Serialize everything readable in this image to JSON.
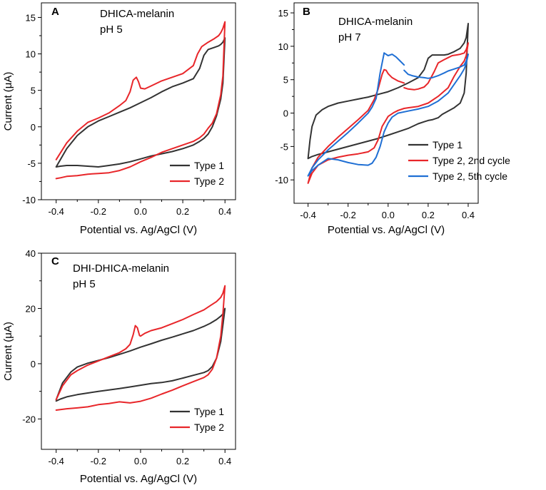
{
  "chart_data": [
    {
      "id": "A",
      "type": "line",
      "panel_label": "A",
      "annotation": [
        "DHICA-melanin",
        "pH 5"
      ],
      "xlabel": "Potential vs. Ag/AgCl (V)",
      "ylabel": "Current (μA)",
      "xlim": [
        -0.47,
        0.45
      ],
      "ylim": [
        -10,
        17
      ],
      "xticks": [
        -0.4,
        -0.2,
        0.0,
        0.2,
        0.4
      ],
      "xtick_labels": [
        "-0.4",
        "-0.2",
        "0.0",
        "0.2",
        "0.4"
      ],
      "yticks": [
        -10,
        -5,
        0,
        5,
        10,
        15
      ],
      "ytick_labels": [
        "-10",
        "-5",
        "0",
        "5",
        "10",
        "15"
      ],
      "legend_position": "bottom-right",
      "series": [
        {
          "name": "Type 1",
          "color": "#333333",
          "segments": [
            {
              "x": [
                -0.4,
                -0.35,
                -0.3,
                -0.25,
                -0.2,
                -0.15,
                -0.1,
                -0.05,
                0.0,
                0.05,
                0.1,
                0.15,
                0.2,
                0.25,
                0.28,
                0.3,
                0.32,
                0.35,
                0.37,
                0.38,
                0.39,
                0.4,
                0.4,
                0.39,
                0.38,
                0.36,
                0.34,
                0.32,
                0.3,
                0.28,
                0.25,
                0.2,
                0.15,
                0.1,
                0.05,
                0.0,
                -0.05,
                -0.1,
                -0.15,
                -0.2,
                -0.25,
                -0.3,
                -0.35,
                -0.38,
                -0.4
              ],
              "y": [
                -5.5,
                -3.0,
                -1.2,
                0.0,
                0.8,
                1.4,
                2.0,
                2.6,
                3.3,
                4.0,
                4.8,
                5.5,
                6.0,
                6.6,
                8.0,
                9.8,
                10.6,
                10.9,
                11.1,
                11.3,
                11.6,
                12.2,
                12.2,
                6.0,
                3.8,
                1.5,
                0.0,
                -1.0,
                -1.6,
                -2.0,
                -2.5,
                -3.0,
                -3.4,
                -3.7,
                -4.0,
                -4.4,
                -4.8,
                -5.1,
                -5.3,
                -5.5,
                -5.4,
                -5.3,
                -5.3,
                -5.4,
                -5.5
              ]
            }
          ]
        },
        {
          "name": "Type 2",
          "color": "#e8262a",
          "segments": [
            {
              "x": [
                -0.4,
                -0.35,
                -0.3,
                -0.25,
                -0.2,
                -0.15,
                -0.1,
                -0.07,
                -0.05,
                -0.035,
                -0.02,
                -0.01,
                0.0,
                0.02,
                0.05,
                0.1,
                0.15,
                0.2,
                0.25,
                0.27,
                0.29,
                0.32,
                0.35,
                0.37,
                0.38,
                0.39,
                0.4,
                0.4,
                0.39,
                0.38,
                0.36,
                0.34,
                0.32,
                0.3,
                0.28,
                0.25,
                0.2,
                0.15,
                0.1,
                0.05,
                0.0,
                -0.05,
                -0.1,
                -0.15,
                -0.2,
                -0.25,
                -0.3,
                -0.35,
                -0.38,
                -0.4
              ],
              "y": [
                -4.5,
                -2.2,
                -0.6,
                0.6,
                1.2,
                1.9,
                2.9,
                3.6,
                4.8,
                6.4,
                6.8,
                6.2,
                5.3,
                5.2,
                5.6,
                6.3,
                6.8,
                7.3,
                8.4,
                10.0,
                11.0,
                11.6,
                12.1,
                12.5,
                12.9,
                13.5,
                14.4,
                14.4,
                7.0,
                4.4,
                1.8,
                0.5,
                -0.2,
                -1.0,
                -1.5,
                -2.0,
                -2.5,
                -3.0,
                -3.5,
                -4.2,
                -4.8,
                -5.5,
                -6.0,
                -6.3,
                -6.4,
                -6.5,
                -6.7,
                -6.8,
                -7.0,
                -7.1
              ]
            }
          ]
        }
      ]
    },
    {
      "id": "B",
      "type": "line",
      "panel_label": "B",
      "annotation": [
        "DHICA-melanin",
        "pH 7"
      ],
      "xlabel": "Potential vs. Ag/AgCl (V)",
      "ylabel": "",
      "xlim": [
        -0.47,
        0.45
      ],
      "ylim": [
        -13.5,
        16.5
      ],
      "xticks": [
        -0.4,
        -0.2,
        0.0,
        0.2,
        0.4
      ],
      "xtick_labels": [
        "-0.4",
        "-0.2",
        "0.0",
        "0.2",
        "0.4"
      ],
      "yticks": [
        -10,
        -5,
        0,
        5,
        10,
        15
      ],
      "ytick_labels": [
        "-10",
        "-5",
        "0",
        "5",
        "10",
        "15"
      ],
      "legend_position": "bottom-right",
      "series": [
        {
          "name": "Type 1",
          "color": "#333333",
          "segments": [
            {
              "x": [
                -0.4,
                -0.39,
                -0.38,
                -0.36,
                -0.33,
                -0.3,
                -0.25,
                -0.2,
                -0.15,
                -0.1,
                -0.05,
                0.0,
                0.05,
                0.1,
                0.15,
                0.18,
                0.2,
                0.22,
                0.25,
                0.28,
                0.3,
                0.33,
                0.36,
                0.38,
                0.39,
                0.4,
                0.4,
                0.39,
                0.38,
                0.36,
                0.33,
                0.3,
                0.27,
                0.25,
                0.22,
                0.2,
                0.18,
                0.15,
                0.1,
                0.05,
                0.0,
                -0.05,
                -0.1,
                -0.15,
                -0.2,
                -0.25,
                -0.3,
                -0.35,
                -0.38,
                -0.4
              ],
              "y": [
                -6.8,
                -4.0,
                -2.0,
                -0.3,
                0.5,
                1.0,
                1.5,
                1.8,
                2.1,
                2.4,
                2.8,
                3.2,
                3.8,
                4.5,
                5.3,
                6.5,
                8.2,
                8.7,
                8.7,
                8.7,
                8.8,
                9.2,
                9.7,
                10.5,
                11.3,
                13.4,
                13.4,
                6.0,
                3.0,
                1.5,
                0.8,
                0.3,
                -0.2,
                -0.7,
                -1.0,
                -1.1,
                -1.3,
                -1.6,
                -2.3,
                -2.8,
                -3.3,
                -3.8,
                -4.2,
                -4.6,
                -5.0,
                -5.4,
                -5.8,
                -6.2,
                -6.5,
                -6.8
              ]
            }
          ]
        },
        {
          "name": "Type 2, 2nd cycle",
          "color": "#e8262a",
          "segments": [
            {
              "x": [
                0.08,
                0.05,
                0.02,
                0.0,
                -0.01,
                -0.02,
                -0.03,
                -0.05,
                -0.07,
                -0.1,
                -0.15,
                -0.2,
                -0.25,
                -0.3,
                -0.35,
                -0.38,
                -0.4,
                -0.4,
                -0.38,
                -0.35,
                -0.3,
                -0.25,
                -0.2,
                -0.15,
                -0.1,
                -0.07,
                -0.05,
                -0.03,
                0.0,
                0.03,
                0.05,
                0.08,
                0.1,
                0.15,
                0.2,
                0.25,
                0.3,
                0.33,
                0.36,
                0.38,
                0.39,
                0.4,
                0.4,
                0.39,
                0.38,
                0.36,
                0.34,
                0.32,
                0.3,
                0.28,
                0.25,
                0.23,
                0.2,
                0.18,
                0.15,
                0.13,
                0.1,
                0.08
              ],
              "y": [
                4.5,
                4.8,
                5.3,
                5.9,
                6.4,
                6.5,
                5.8,
                3.6,
                2.0,
                0.4,
                -1.0,
                -2.3,
                -3.6,
                -5.0,
                -6.6,
                -8.2,
                -10.5,
                -10.5,
                -9.0,
                -7.8,
                -7.0,
                -6.6,
                -6.3,
                -6.1,
                -5.8,
                -5.2,
                -4.0,
                -2.0,
                -0.5,
                0.1,
                0.4,
                0.7,
                0.8,
                1.0,
                1.5,
                2.5,
                3.8,
                5.5,
                7.0,
                7.8,
                8.6,
                10.5,
                10.5,
                9.5,
                9.0,
                8.8,
                8.7,
                8.6,
                8.3,
                8.0,
                7.5,
                6.2,
                4.5,
                3.9,
                3.6,
                3.5,
                3.6,
                3.8
              ]
            }
          ]
        },
        {
          "name": "Type 2, 5th cycle",
          "color": "#1f6fd4",
          "segments": [
            {
              "x": [
                -0.02,
                -0.04,
                -0.06,
                -0.08,
                -0.1,
                -0.15,
                -0.2,
                -0.25,
                -0.3,
                -0.35,
                -0.38,
                -0.4,
                -0.4,
                -0.38,
                -0.35,
                -0.3,
                -0.25,
                -0.2,
                -0.15,
                -0.1,
                -0.08,
                -0.06,
                -0.04,
                -0.02,
                0.0,
                0.02,
                0.05,
                0.1,
                0.15,
                0.2,
                0.25,
                0.3,
                0.33,
                0.36,
                0.38,
                0.39,
                0.4,
                0.4,
                0.39,
                0.38,
                0.36,
                0.34,
                0.32,
                0.3,
                0.28,
                0.25,
                0.22,
                0.2,
                0.18,
                0.15,
                0.12,
                0.1,
                0.08
              ],
              "y": [
                9.0,
                6.0,
                2.2,
                0.9,
                0.0,
                -1.5,
                -2.9,
                -4.2,
                -5.5,
                -7.0,
                -8.2,
                -9.4,
                -9.4,
                -8.6,
                -7.8,
                -6.8,
                -7.0,
                -7.4,
                -7.7,
                -7.8,
                -7.5,
                -6.6,
                -5.0,
                -2.8,
                -1.5,
                -0.6,
                0.0,
                0.3,
                0.6,
                1.0,
                1.8,
                3.0,
                4.3,
                5.6,
                6.6,
                7.4,
                8.8,
                8.8,
                7.8,
                7.2,
                6.9,
                6.7,
                6.5,
                6.3,
                6.0,
                5.6,
                5.3,
                5.2,
                5.3,
                5.4,
                5.6,
                5.8,
                6.4
              ]
            },
            {
              "x": [
                -0.02,
                0.0,
                0.02,
                0.04,
                0.06,
                0.08
              ],
              "y": [
                9.0,
                8.6,
                8.8,
                8.4,
                7.8,
                7.2
              ]
            }
          ]
        }
      ]
    },
    {
      "id": "C",
      "type": "line",
      "panel_label": "C",
      "annotation": [
        "DHI-DHICA-melanin",
        "pH 5"
      ],
      "xlabel": "Potential vs. Ag/AgCl (V)",
      "ylabel": "Current (μA)",
      "xlim": [
        -0.47,
        0.45
      ],
      "ylim": [
        -31,
        40
      ],
      "xticks": [
        -0.4,
        -0.2,
        0.0,
        0.2,
        0.4
      ],
      "xtick_labels": [
        "-0.4",
        "-0.2",
        "0.0",
        "0.2",
        "0.4"
      ],
      "yticks": [
        -20,
        0,
        20,
        40
      ],
      "ytick_labels": [
        "-20",
        "0",
        "20",
        "40"
      ],
      "legend_position": "bottom-right",
      "series": [
        {
          "name": "Type 1",
          "color": "#333333",
          "segments": [
            {
              "x": [
                -0.4,
                -0.37,
                -0.33,
                -0.3,
                -0.25,
                -0.2,
                -0.15,
                -0.1,
                -0.05,
                0.0,
                0.05,
                0.1,
                0.15,
                0.2,
                0.25,
                0.3,
                0.33,
                0.36,
                0.38,
                0.39,
                0.4,
                0.4,
                0.39,
                0.38,
                0.36,
                0.34,
                0.32,
                0.3,
                0.25,
                0.2,
                0.15,
                0.1,
                0.05,
                0.0,
                -0.05,
                -0.1,
                -0.15,
                -0.2,
                -0.25,
                -0.3,
                -0.35,
                -0.38,
                -0.4
              ],
              "y": [
                -13.0,
                -7.0,
                -3.0,
                -1.2,
                0.2,
                1.2,
                2.2,
                3.4,
                4.6,
                6.0,
                7.2,
                8.5,
                9.6,
                10.8,
                12.0,
                13.5,
                14.6,
                16.0,
                17.2,
                18.0,
                20.0,
                20.0,
                14.0,
                8.0,
                2.0,
                -1.0,
                -2.5,
                -3.2,
                -4.2,
                -5.2,
                -6.2,
                -6.8,
                -7.2,
                -7.8,
                -8.4,
                -9.0,
                -9.5,
                -10.0,
                -10.6,
                -11.2,
                -12.0,
                -12.8,
                -13.5
              ]
            }
          ]
        },
        {
          "name": "Type 2",
          "color": "#e8262a",
          "segments": [
            {
              "x": [
                -0.4,
                -0.37,
                -0.33,
                -0.3,
                -0.25,
                -0.2,
                -0.15,
                -0.1,
                -0.07,
                -0.05,
                -0.035,
                -0.025,
                -0.015,
                -0.005,
                0.0,
                0.02,
                0.05,
                0.1,
                0.15,
                0.2,
                0.25,
                0.3,
                0.33,
                0.36,
                0.38,
                0.39,
                0.4,
                0.4,
                0.39,
                0.38,
                0.36,
                0.34,
                0.32,
                0.3,
                0.25,
                0.2,
                0.15,
                0.1,
                0.05,
                0.0,
                -0.05,
                -0.1,
                -0.15,
                -0.2,
                -0.25,
                -0.3,
                -0.35,
                -0.38,
                -0.4
              ],
              "y": [
                -13.0,
                -8.0,
                -4.0,
                -2.5,
                -0.5,
                1.0,
                2.5,
                4.0,
                5.4,
                7.0,
                10.5,
                13.8,
                13.0,
                10.2,
                10.0,
                11.0,
                12.0,
                13.0,
                14.5,
                16.0,
                17.8,
                19.5,
                21.0,
                22.5,
                24.0,
                25.5,
                28.2,
                28.2,
                18.0,
                10.0,
                2.0,
                -2.0,
                -4.0,
                -5.0,
                -6.5,
                -8.0,
                -9.6,
                -11.0,
                -12.5,
                -13.6,
                -14.2,
                -13.8,
                -14.4,
                -14.8,
                -15.6,
                -16.0,
                -16.3,
                -16.6,
                -16.8
              ]
            }
          ]
        }
      ]
    }
  ]
}
